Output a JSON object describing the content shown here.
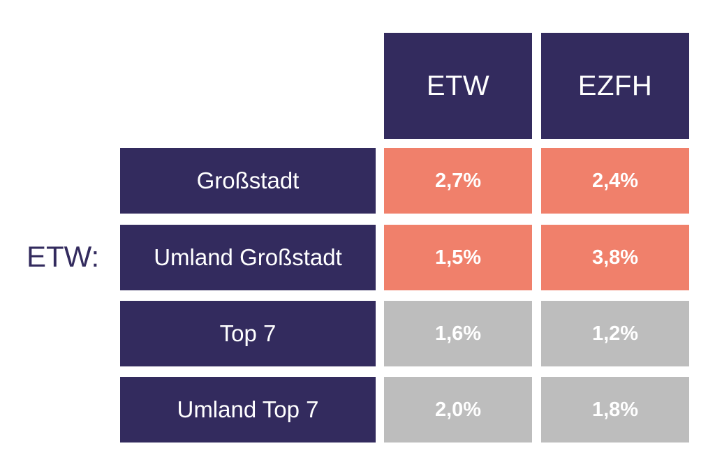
{
  "chart_data": {
    "type": "table",
    "side_label": "ETW:",
    "columns": [
      "ETW",
      "EZFH"
    ],
    "rows": [
      {
        "label": "Großstadt",
        "values": [
          "2,7%",
          "2,4%"
        ],
        "highlight": true
      },
      {
        "label": "Umland Großstadt",
        "values": [
          "1,5%",
          "3,8%"
        ],
        "highlight": true
      },
      {
        "label": "Top 7",
        "values": [
          "1,6%",
          "1,2%"
        ],
        "highlight": false
      },
      {
        "label": "Umland Top 7",
        "values": [
          "2,0%",
          "1,8%"
        ],
        "highlight": false
      }
    ],
    "colors": {
      "header": "#332b5e",
      "highlight": "#f0806b",
      "muted": "#bdbdbd",
      "text": "#ffffff"
    }
  }
}
